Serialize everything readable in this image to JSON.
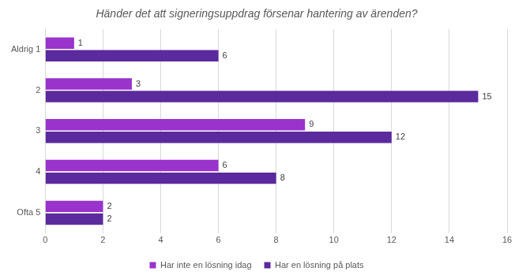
{
  "chart_data": {
    "type": "bar",
    "orientation": "horizontal",
    "title": "Händer det att signeringsuppdrag försenar hantering av ärenden?",
    "categories": [
      "Aldrig 1",
      "2",
      "3",
      "4",
      "Ofta 5"
    ],
    "series": [
      {
        "name": "Har inte en lösning idag",
        "color": "#9933cc",
        "values": [
          1,
          3,
          9,
          6,
          2
        ]
      },
      {
        "name": "Har en lösning på plats",
        "color": "#5b2a9c",
        "values": [
          6,
          15,
          12,
          8,
          2
        ]
      }
    ],
    "xlim": [
      0,
      16
    ],
    "xticks": [
      0,
      2,
      4,
      6,
      8,
      10,
      12,
      14,
      16
    ],
    "grid": true,
    "legend": "bottom",
    "data_labels": true
  }
}
